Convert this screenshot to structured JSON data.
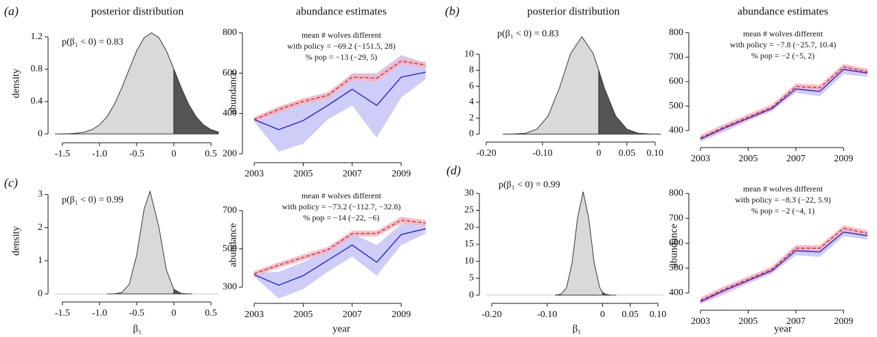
{
  "chart_data": [
    {
      "type": "density",
      "panel_label": "(a)",
      "title": "posterior distribution",
      "ylabel": "density",
      "annotation": "p(β₁ < 0) = 0.83",
      "xlim": [
        -1.6,
        0.6
      ],
      "xticks": [
        -1.5,
        {
          "value": -1,
          "label": "-1.0"
        },
        -0.5,
        0,
        0.5
      ],
      "ylim": [
        -0.05,
        1.3
      ],
      "yticks": [
        0,
        0.4,
        0.8,
        1.2
      ],
      "series": [
        {
          "color": "#d9d9d9",
          "x": [
            -1.6,
            -1.5,
            -1.4,
            -1.3,
            -1.2,
            -1.1,
            -1.0,
            -0.9,
            -0.8,
            -0.7,
            -0.6,
            -0.5,
            -0.4,
            -0.3,
            -0.2,
            -0.1,
            0
          ],
          "values": [
            0,
            0.001,
            0.003,
            0.009,
            0.023,
            0.054,
            0.112,
            0.213,
            0.366,
            0.57,
            0.803,
            1.027,
            1.19,
            1.25,
            1.19,
            1.027,
            0.803
          ]
        },
        {
          "color": "#555555",
          "x": [
            0,
            0.1,
            0.2,
            0.3,
            0.4,
            0.5,
            0.6
          ],
          "values": [
            0.803,
            0.57,
            0.366,
            0.213,
            0.112,
            0.054,
            0.023
          ]
        }
      ]
    },
    {
      "type": "band-line",
      "title": "abundance estimates",
      "ylabel": "abundance",
      "annotation": [
        "mean # wolves different",
        "with policy = −69.2 (−151.5, 28)",
        "% pop = −13 (−29, 5)"
      ],
      "x": [
        2003,
        2004,
        2005,
        2006,
        2007,
        2008,
        2009,
        2010
      ],
      "xlim": [
        2002.8,
        2010.2
      ],
      "xticks": [
        2003,
        2005,
        2007,
        2009
      ],
      "ylim": [
        180,
        830
      ],
      "yticks": [
        200,
        400,
        600,
        800
      ],
      "series": [
        {
          "color": "#2222dd",
          "band_color": "#c4c4f6",
          "values": [
            370,
            320,
            365,
            440,
            520,
            440,
            580,
            605
          ],
          "lower": [
            360,
            210,
            250,
            370,
            440,
            280,
            480,
            570
          ],
          "upper": [
            380,
            430,
            470,
            500,
            600,
            600,
            690,
            650
          ]
        },
        {
          "color": "#e0203a",
          "band_color": "#f4b4bc",
          "dashed": true,
          "values": [
            370,
            420,
            460,
            490,
            580,
            575,
            660,
            640
          ],
          "lower": [
            358,
            405,
            445,
            475,
            565,
            560,
            645,
            625
          ],
          "upper": [
            382,
            435,
            475,
            505,
            595,
            590,
            675,
            655
          ]
        }
      ]
    },
    {
      "type": "density",
      "panel_label": "(b)",
      "title": "posterior distribution",
      "annotation": "p(β₁ < 0) = 0.83",
      "xlim": [
        -0.2,
        0.11
      ],
      "xticks": [
        {
          "value": -0.2,
          "label": "-0.20"
        },
        {
          "value": -0.1,
          "label": "-0.10"
        },
        0,
        0.05,
        {
          "value": 0.1,
          "label": "0.10"
        }
      ],
      "ylim": [
        -0.4,
        12.5
      ],
      "yticks": [
        0,
        2,
        4,
        6,
        8,
        10
      ],
      "series": [
        {
          "color": "#d9d9d9",
          "x": [
            -0.17,
            -0.15,
            -0.13,
            -0.11,
            -0.09,
            -0.07,
            -0.05,
            -0.03,
            -0.01,
            0
          ],
          "values": [
            0.001,
            0.015,
            0.11,
            0.61,
            2.27,
            5.77,
            10.1,
            12.2,
            10.1,
            8.0
          ]
        },
        {
          "color": "#555555",
          "x": [
            0,
            0.01,
            0.03,
            0.05,
            0.07,
            0.09,
            0.11
          ],
          "values": [
            8.0,
            5.77,
            2.27,
            0.61,
            0.11,
            0.015,
            0.001
          ]
        }
      ]
    },
    {
      "type": "band-line",
      "title": "abundance estimates",
      "annotation": [
        "mean # wolves different",
        "with policy = −7.8 (−25.7, 10.4)",
        "% pop = −2 (−5, 2)"
      ],
      "x": [
        2003,
        2004,
        2005,
        2006,
        2007,
        2008,
        2009,
        2010
      ],
      "xlim": [
        2002.8,
        2010.2
      ],
      "xticks": [
        2003,
        2005,
        2007,
        2009
      ],
      "ylim": [
        350,
        830
      ],
      "yticks": [
        400,
        500,
        600,
        700,
        800
      ],
      "series": [
        {
          "color": "#2222dd",
          "band_color": "#c4c4f6",
          "values": [
            365,
            410,
            450,
            490,
            570,
            560,
            650,
            635
          ],
          "lower": [
            355,
            395,
            440,
            480,
            555,
            540,
            630,
            620
          ],
          "upper": [
            375,
            420,
            460,
            500,
            580,
            575,
            665,
            650
          ]
        },
        {
          "color": "#e0203a",
          "band_color": "#f4b4bc",
          "dashed": true,
          "values": [
            370,
            415,
            455,
            495,
            580,
            575,
            660,
            640
          ],
          "lower": [
            358,
            403,
            443,
            483,
            568,
            563,
            648,
            628
          ],
          "upper": [
            382,
            427,
            467,
            507,
            592,
            587,
            672,
            652
          ]
        }
      ]
    },
    {
      "type": "density",
      "panel_label": "(c)",
      "ylabel": "density",
      "xlabel": "β₁",
      "baseline": true,
      "annotation": "p(β₁ < 0) = 0.99",
      "xlim": [
        -1.6,
        0.6
      ],
      "xticks": [
        -1.5,
        {
          "value": -1,
          "label": "-1.0"
        },
        -0.5,
        0,
        0.5
      ],
      "ylim": [
        -0.1,
        3.3
      ],
      "yticks": [
        0,
        1,
        2,
        3
      ],
      "series": [
        {
          "color": "#d9d9d9",
          "x": [
            -0.9,
            -0.8,
            -0.7,
            -0.6,
            -0.5,
            -0.4,
            -0.32,
            -0.2,
            -0.1,
            0
          ],
          "values": [
            0,
            0.003,
            0.04,
            0.29,
            1.17,
            2.56,
            3.1,
            2.01,
            0.72,
            0.14
          ]
        },
        {
          "color": "#555555",
          "x": [
            0,
            0.1,
            0.2,
            0.25
          ],
          "values": [
            0.14,
            0.015,
            0.001,
            0
          ]
        }
      ]
    },
    {
      "type": "band-line",
      "ylabel": "abundance",
      "xlabel": "year",
      "annotation": [
        "mean # wolves different",
        "with policy = −73.2 (−112.7, −32.8)",
        "% pop = −14 (−22, −6)"
      ],
      "x": [
        2003,
        2004,
        2005,
        2006,
        2007,
        2008,
        2009,
        2010
      ],
      "xlim": [
        2002.8,
        2010.2
      ],
      "xticks": [
        2003,
        2005,
        2007,
        2009
      ],
      "ylim": [
        240,
        800
      ],
      "yticks": [
        300,
        500,
        700
      ],
      "series": [
        {
          "color": "#2222dd",
          "band_color": "#c4c4f6",
          "values": [
            365,
            310,
            360,
            440,
            520,
            430,
            575,
            605
          ],
          "lower": [
            355,
            240,
            290,
            380,
            460,
            360,
            520,
            580
          ],
          "upper": [
            375,
            380,
            430,
            500,
            580,
            520,
            630,
            630
          ]
        },
        {
          "color": "#e0203a",
          "band_color": "#f4b4bc",
          "dashed": true,
          "values": [
            370,
            415,
            455,
            495,
            580,
            580,
            650,
            635
          ],
          "lower": [
            356,
            400,
            440,
            480,
            565,
            565,
            632,
            620
          ],
          "upper": [
            384,
            430,
            470,
            510,
            595,
            595,
            668,
            650
          ]
        }
      ]
    },
    {
      "type": "density",
      "panel_label": "(d)",
      "xlabel": "β₁",
      "baseline": true,
      "annotation": "p(β₁ < 0) = 0.99",
      "xlim": [
        -0.21,
        0.11
      ],
      "xticks": [
        {
          "value": -0.2,
          "label": "-0.20"
        },
        {
          "value": -0.1,
          "label": "-0.10"
        },
        0,
        0.05,
        {
          "value": 0.1,
          "label": "0.10"
        }
      ],
      "ylim": [
        -1,
        33
      ],
      "yticks": [
        0,
        5,
        10,
        15,
        20,
        25,
        30
      ],
      "series": [
        {
          "color": "#d9d9d9",
          "x": [
            -0.085,
            -0.075,
            -0.065,
            -0.055,
            -0.045,
            -0.035,
            -0.025,
            -0.015,
            -0.005,
            0
          ],
          "values": [
            0.02,
            0.28,
            2.2,
            9.5,
            22.8,
            30.5,
            22.8,
            9.5,
            2.2,
            0.85
          ]
        },
        {
          "color": "#555555",
          "x": [
            0,
            0.005,
            0.015,
            0.025
          ],
          "values": [
            0.85,
            0.28,
            0.02,
            0
          ]
        }
      ]
    },
    {
      "type": "band-line",
      "ylabel": "abundance",
      "xlabel": "year",
      "annotation": [
        "mean # wolves different",
        "with policy = −8.3 (−22, 5.9)",
        "% pop = −2 (−4, 1)"
      ],
      "x": [
        2003,
        2004,
        2005,
        2006,
        2007,
        2008,
        2009,
        2010
      ],
      "xlim": [
        2002.8,
        2010.2
      ],
      "xticks": [
        2003,
        2005,
        2007,
        2009
      ],
      "ylim": [
        350,
        830
      ],
      "yticks": [
        400,
        500,
        600,
        700,
        800
      ],
      "series": [
        {
          "color": "#2222dd",
          "band_color": "#c4c4f6",
          "values": [
            365,
            410,
            450,
            490,
            570,
            565,
            645,
            630
          ],
          "lower": [
            355,
            395,
            438,
            478,
            552,
            545,
            628,
            615
          ],
          "upper": [
            375,
            422,
            462,
            502,
            585,
            582,
            662,
            645
          ]
        },
        {
          "color": "#e0203a",
          "band_color": "#f4b4bc",
          "dashed": true,
          "values": [
            370,
            415,
            455,
            495,
            580,
            580,
            660,
            640
          ],
          "lower": [
            358,
            403,
            443,
            483,
            568,
            568,
            648,
            628
          ],
          "upper": [
            382,
            427,
            467,
            507,
            592,
            592,
            672,
            652
          ]
        }
      ]
    }
  ]
}
